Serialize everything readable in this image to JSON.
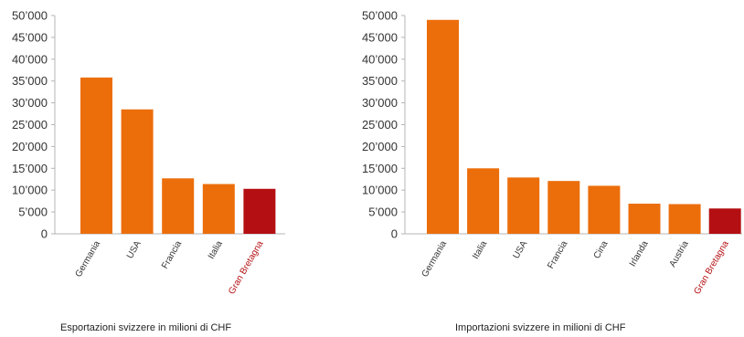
{
  "chart_data": [
    {
      "type": "bar",
      "title": "",
      "caption": "Esportazioni svizzere in milioni di CHF",
      "xlabel": "",
      "ylabel": "",
      "ylim": [
        0,
        50000
      ],
      "yticks": [
        0,
        5000,
        10000,
        15000,
        20000,
        25000,
        30000,
        35000,
        40000,
        45000,
        50000
      ],
      "ytick_labels": [
        "0",
        "5’000",
        "10’000",
        "15’000",
        "20’000",
        "25’000",
        "30’000",
        "35’000",
        "40’000",
        "45’000",
        "50’000"
      ],
      "categories": [
        "Germania",
        "USA",
        "Francia",
        "Italia",
        "Gran Bretagna"
      ],
      "values": [
        35800,
        28500,
        12700,
        11400,
        10300
      ],
      "highlight": "Gran Bretagna",
      "grid": false
    },
    {
      "type": "bar",
      "title": "",
      "caption": "Importazioni svizzere in milioni di CHF",
      "xlabel": "",
      "ylabel": "",
      "ylim": [
        0,
        50000
      ],
      "yticks": [
        0,
        5000,
        10000,
        15000,
        20000,
        25000,
        30000,
        35000,
        40000,
        45000,
        50000
      ],
      "ytick_labels": [
        "0",
        "5’000",
        "10’000",
        "15’000",
        "20’000",
        "25’000",
        "30’000",
        "35’000",
        "40’000",
        "45’000",
        "50’000"
      ],
      "categories": [
        "Germania",
        "Italia",
        "USA",
        "Francia",
        "Cina",
        "Irlanda",
        "Austria",
        "Gran Bretagna"
      ],
      "values": [
        49000,
        15000,
        12900,
        12100,
        11000,
        6900,
        6800,
        5800
      ],
      "highlight": "Gran Bretagna",
      "grid": false
    }
  ],
  "colors": {
    "bar": "#EC6E0B",
    "highlight_bar": "#B40F12",
    "highlight_label": "#B40F12",
    "axis": "#b5b5b5",
    "text": "#333333"
  }
}
